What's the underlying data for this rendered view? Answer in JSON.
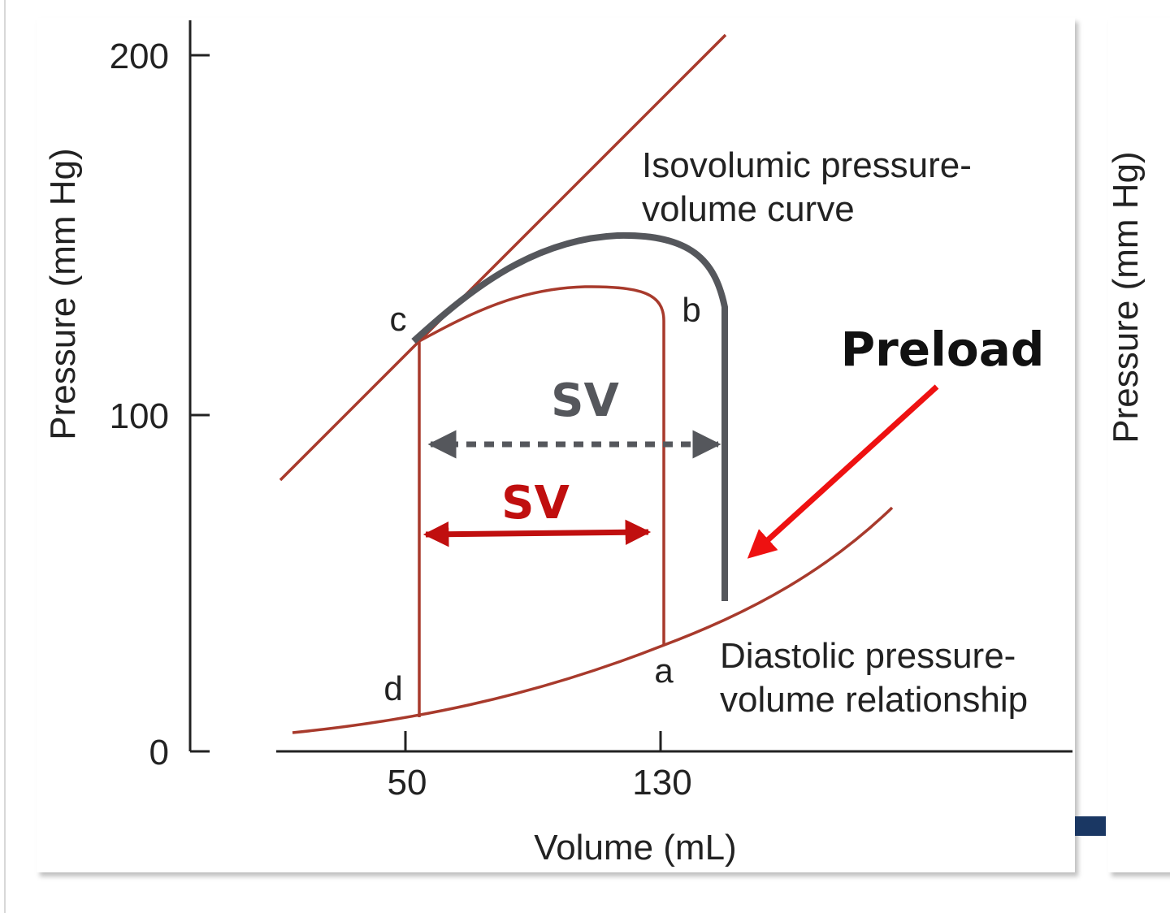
{
  "diagram": {
    "y_axis": {
      "label": "Pressure (mm Hg)",
      "ticks": [
        "200",
        "100",
        "0"
      ]
    },
    "x_axis": {
      "label": "Volume (mL)",
      "ticks": [
        "50",
        "130"
      ]
    },
    "points": {
      "a": "a",
      "b": "b",
      "c": "c",
      "d": "d"
    },
    "annotations": {
      "isovolumic_line1": "Isovolumic pressure-",
      "isovolumic_line2": "volume curve",
      "diastolic_line1": "Diastolic pressure-",
      "diastolic_line2": "volume relationship",
      "preload": "Preload",
      "sv_dark": "SV",
      "sv_red": "SV"
    },
    "right_panel": {
      "y_axis_label": "Pressure (mm Hg)"
    },
    "colors": {
      "brown": "#a83a2c",
      "dark_gray": "#55575c",
      "red_arrow": "#ee1111",
      "sv_red": "#c00f0f",
      "navy": "#1a3763"
    }
  }
}
